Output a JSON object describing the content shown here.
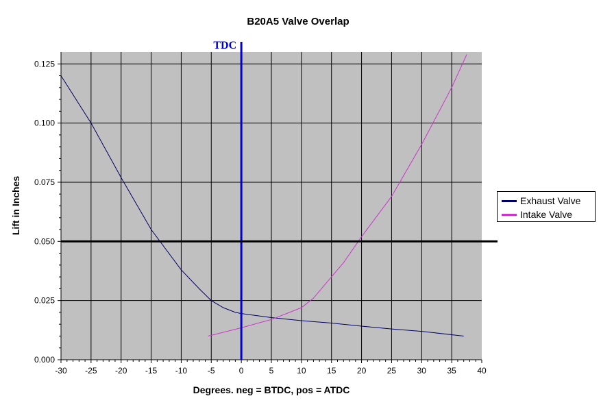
{
  "chart_data": {
    "type": "line",
    "title": "B20A5 Valve Overlap",
    "xlabel": "Degrees. neg = BTDC, pos = ATDC",
    "ylabel": "Lift in Inches",
    "xlim": [
      -30,
      40
    ],
    "ylim": [
      0,
      0.13
    ],
    "x_ticks": [
      "-30",
      "-25",
      "-20",
      "-15",
      "-10",
      "-5",
      "0",
      "5",
      "10",
      "15",
      "20",
      "25",
      "30",
      "35",
      "40"
    ],
    "y_ticks": [
      "0.000",
      "0.025",
      "0.050",
      "0.075",
      "0.100",
      "0.125"
    ],
    "grid": true,
    "legend_position": "right",
    "plot_background": "#c0c0c0",
    "series": [
      {
        "name": "Exhaust Valve",
        "color": "#000066",
        "x": [
          -30,
          -25,
          -20,
          -15,
          -10,
          -7,
          -5,
          -3,
          -1,
          0,
          5,
          10,
          15,
          20,
          25,
          30,
          37
        ],
        "y": [
          0.12,
          0.1,
          0.077,
          0.055,
          0.038,
          0.03,
          0.025,
          0.022,
          0.02,
          0.0195,
          0.0178,
          0.0165,
          0.0155,
          0.0142,
          0.013,
          0.012,
          0.01
        ]
      },
      {
        "name": "Intake Valve",
        "color": "#cc33cc",
        "x": [
          -5.5,
          0,
          5,
          10,
          12,
          15,
          17,
          20,
          25,
          30,
          35,
          37.5
        ],
        "y": [
          0.01,
          0.0135,
          0.017,
          0.022,
          0.026,
          0.035,
          0.041,
          0.052,
          0.069,
          0.091,
          0.115,
          0.129
        ]
      }
    ],
    "annotations": [
      {
        "text": "TDC",
        "type": "vertical-line",
        "x": 0,
        "color": "#0000dd"
      },
      {
        "text": "",
        "type": "horizontal-line",
        "y": 0.05,
        "color": "#000000"
      }
    ]
  }
}
